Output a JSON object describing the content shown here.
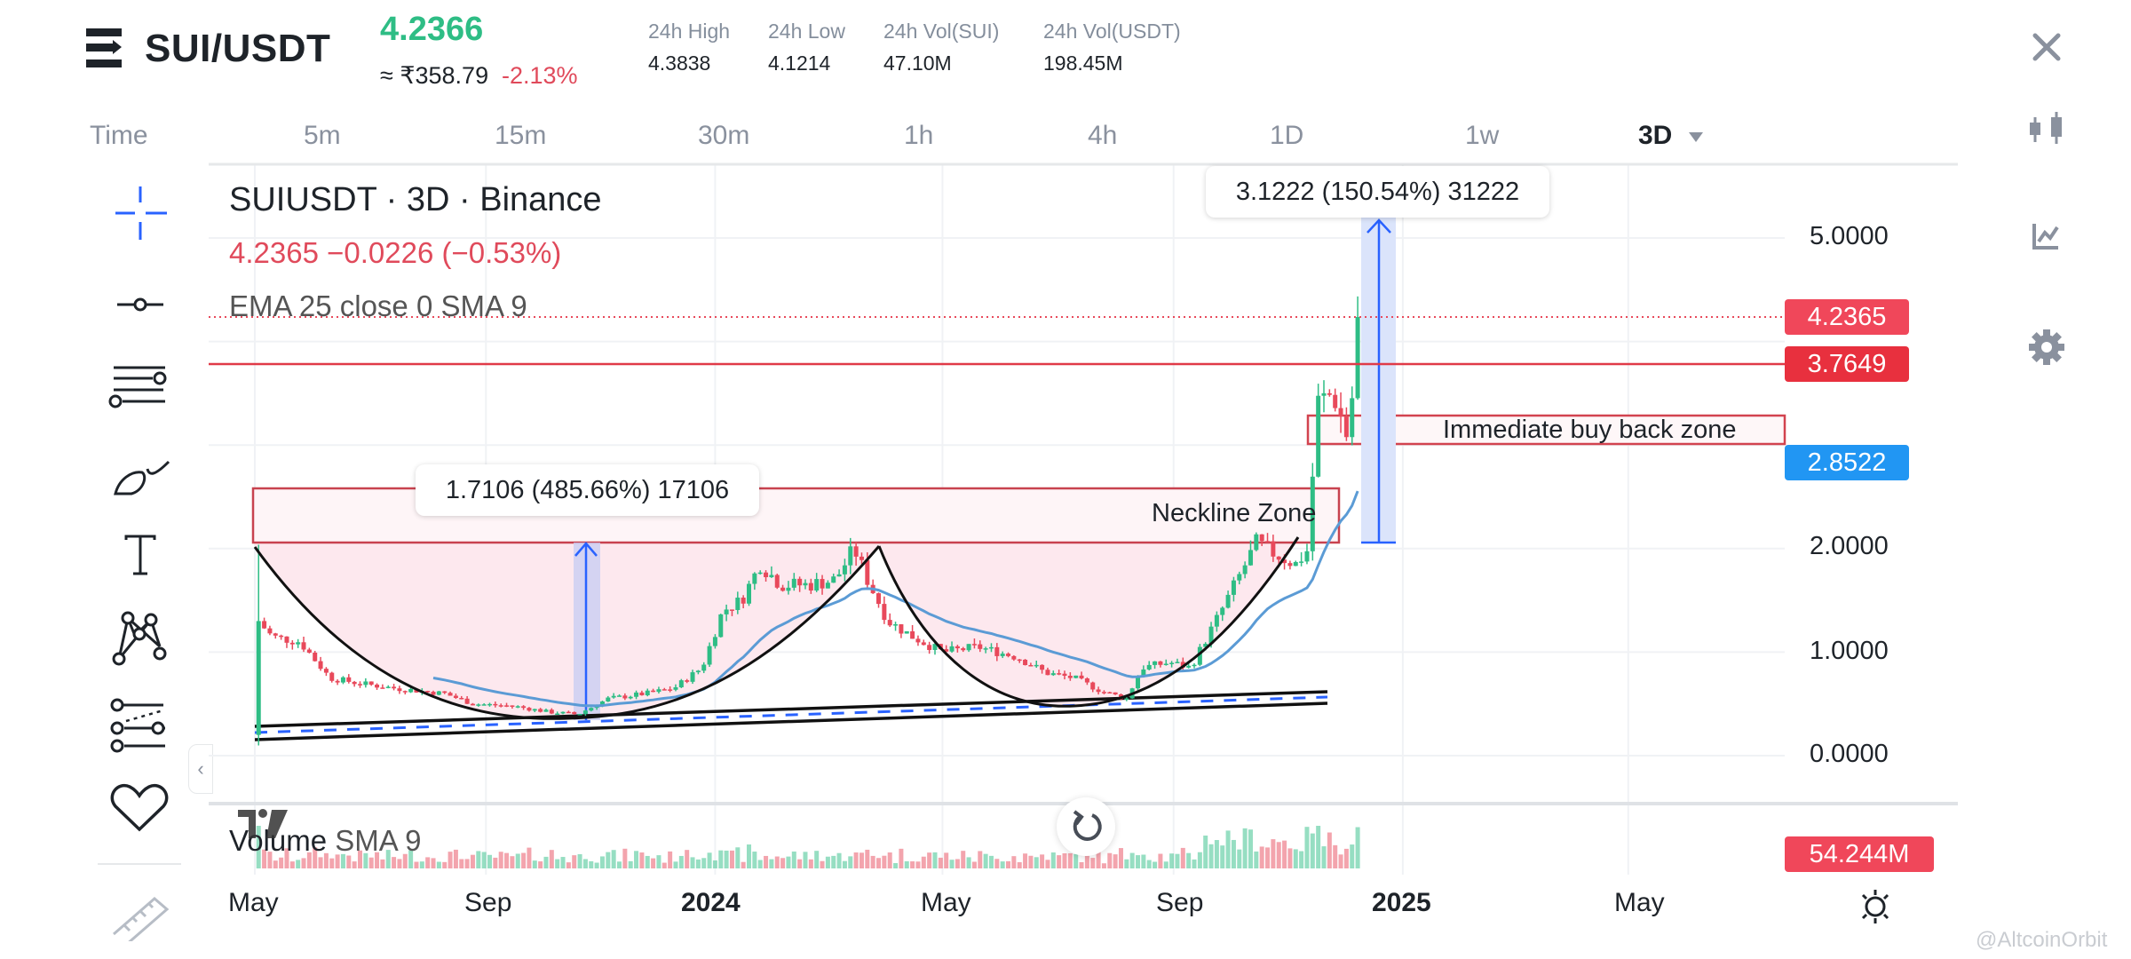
{
  "header": {
    "pair": "SUI/USDT",
    "last_price": "4.2366",
    "fiat_price": "≈ ₹358.79",
    "change_pct": "-2.13%",
    "stats": [
      {
        "label": "24h High",
        "value": "4.3838"
      },
      {
        "label": "24h Low",
        "value": "4.1214"
      },
      {
        "label": "24h Vol(SUI)",
        "value": "47.10M"
      },
      {
        "label": "24h Vol(USDT)",
        "value": "198.45M"
      }
    ],
    "close_icon": "close-icon"
  },
  "timeframes": {
    "items": [
      "Time",
      "5m",
      "15m",
      "30m",
      "1h",
      "4h",
      "1D",
      "1w"
    ],
    "selected": "3D",
    "dropdown_icon": "caret-down-icon"
  },
  "right_toolbar": [
    "candlestick-icon",
    "indicator-chart-icon",
    "gear-icon"
  ],
  "left_toolbar": [
    "crosshair-icon",
    "trend-line-icon",
    "fib-lines-icon",
    "brush-icon",
    "text-icon",
    "pattern-icon",
    "forecast-icon",
    "heart-icon",
    "ruler-icon"
  ],
  "legend": {
    "symbol": "SUIUSDT · 3D · Binance",
    "ohlc": "4.2365  −0.0226 (−0.53%)",
    "indicator": "EMA 25 close 0 SMA 9",
    "volume_label": "Volume",
    "volume_sma": "SMA 9"
  },
  "colors": {
    "up": "#2ebd85",
    "down": "#e8495b",
    "ema": "#5b9bd5",
    "price_badge": "#f0475a",
    "level_badge": "#e8303e",
    "ema_badge": "#2196f3",
    "zone_border": "#c8424f",
    "zone_fill": "#fde8ee"
  },
  "chart_data": {
    "type": "candlestick",
    "interval": "3D",
    "y_axis": {
      "ticks": [
        "5.0000",
        "2.0000",
        "1.0000",
        "0.0000"
      ],
      "ylim": [
        0,
        6.5
      ],
      "scale": "linear"
    },
    "x_axis": {
      "ticks": [
        {
          "label": "May",
          "date": "2023-05-01",
          "bold": false
        },
        {
          "label": "Sep",
          "date": "2023-09-01",
          "bold": false
        },
        {
          "label": "2024",
          "date": "2024-01-01",
          "bold": true
        },
        {
          "label": "May",
          "date": "2024-05-01",
          "bold": false
        },
        {
          "label": "Sep",
          "date": "2024-09-01",
          "bold": false
        },
        {
          "label": "2025",
          "date": "2025-01-01",
          "bold": true
        },
        {
          "label": "May",
          "date": "2025-05-01",
          "bold": false
        }
      ]
    },
    "grid": true,
    "price_path": [
      [
        "2023-05-03",
        1.3
      ],
      [
        "2023-05-10",
        1.15
      ],
      [
        "2023-05-25",
        1.1
      ],
      [
        "2023-06-10",
        0.75
      ],
      [
        "2023-06-25",
        0.7
      ],
      [
        "2023-07-15",
        0.65
      ],
      [
        "2023-08-10",
        0.6
      ],
      [
        "2023-08-25",
        0.5
      ],
      [
        "2023-09-15",
        0.48
      ],
      [
        "2023-10-05",
        0.42
      ],
      [
        "2023-10-20",
        0.4
      ],
      [
        "2023-11-05",
        0.55
      ],
      [
        "2023-11-25",
        0.6
      ],
      [
        "2023-12-10",
        0.65
      ],
      [
        "2023-12-25",
        0.85
      ],
      [
        "2024-01-05",
        1.4
      ],
      [
        "2024-01-15",
        1.5
      ],
      [
        "2024-01-25",
        1.85
      ],
      [
        "2024-02-05",
        1.65
      ],
      [
        "2024-02-20",
        1.65
      ],
      [
        "2024-03-05",
        1.7
      ],
      [
        "2024-03-15",
        2.0
      ],
      [
        "2024-03-22",
        1.7
      ],
      [
        "2024-04-02",
        1.3
      ],
      [
        "2024-04-15",
        1.15
      ],
      [
        "2024-05-01",
        1.0
      ],
      [
        "2024-05-20",
        1.05
      ],
      [
        "2024-06-10",
        0.95
      ],
      [
        "2024-06-25",
        0.8
      ],
      [
        "2024-07-10",
        0.75
      ],
      [
        "2024-07-25",
        0.62
      ],
      [
        "2024-08-07",
        0.55
      ],
      [
        "2024-08-15",
        0.85
      ],
      [
        "2024-08-30",
        0.9
      ],
      [
        "2024-09-10",
        0.85
      ],
      [
        "2024-09-25",
        1.35
      ],
      [
        "2024-10-05",
        1.7
      ],
      [
        "2024-10-15",
        2.05
      ],
      [
        "2024-10-25",
        1.95
      ],
      [
        "2024-11-05",
        1.85
      ],
      [
        "2024-11-12",
        2.0
      ],
      [
        "2024-11-16",
        3.4
      ],
      [
        "2024-11-25",
        3.5
      ],
      [
        "2024-12-02",
        3.1
      ],
      [
        "2024-12-07",
        3.7
      ],
      [
        "2024-12-10",
        4.2365
      ]
    ],
    "price_labels": [
      {
        "value": 4.2365,
        "label": "4.2365",
        "kind": "last-price"
      },
      {
        "value": 3.7649,
        "label": "3.7649",
        "kind": "horizontal-line"
      },
      {
        "value": 2.8522,
        "label": "2.8522",
        "kind": "ema"
      }
    ],
    "volume_label": "54.244M",
    "annotations": {
      "measure_1": "1.7106 (485.66%) 17106",
      "measure_2": "3.1222 (150.54%) 31222",
      "neckline_zone": "Neckline Zone",
      "buy_back_zone": "Immediate buy back zone"
    }
  },
  "footer": {
    "theme_icon": "sun-icon",
    "watermark": "@AltcoinOrbit"
  }
}
